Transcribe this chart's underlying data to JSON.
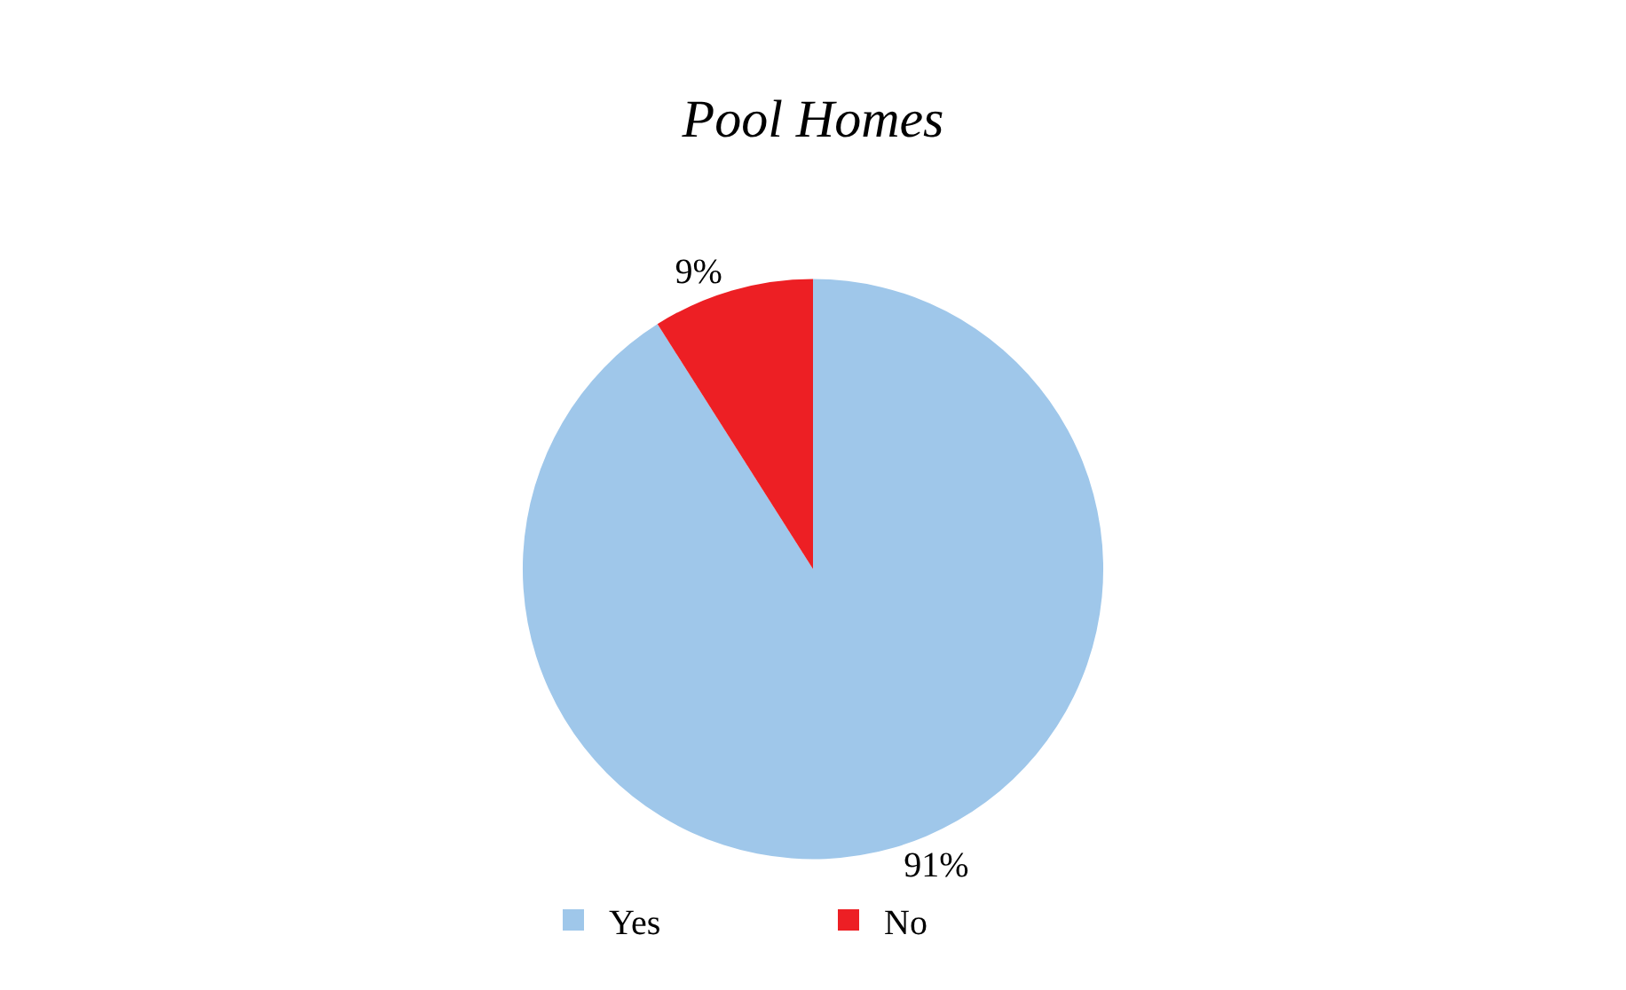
{
  "chart_data": {
    "type": "pie",
    "title": "Pool Homes",
    "categories": [
      "Yes",
      "No"
    ],
    "values": [
      91,
      9
    ],
    "colors": [
      "#9fc7ea",
      "#ed1f24"
    ],
    "value_labels": [
      "91%",
      "9%"
    ],
    "legend": "bottom"
  }
}
